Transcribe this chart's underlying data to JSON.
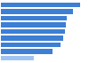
{
  "values": [
    95,
    87,
    79,
    78,
    77,
    75,
    72,
    62,
    40
  ],
  "bar_color": "#3d7fd4",
  "last_bar_color": "#a0c4f0",
  "background_color": "#ffffff",
  "bar_height": 0.72,
  "xlim": [
    0,
    105
  ],
  "ylim": [
    -0.6,
    8.6
  ]
}
